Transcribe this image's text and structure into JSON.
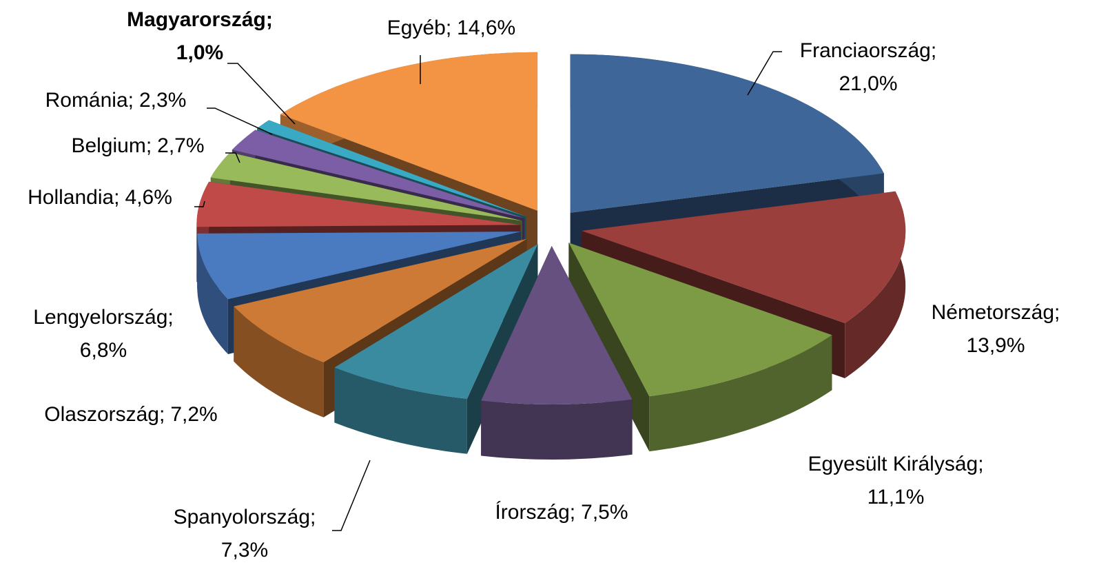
{
  "chart_data": {
    "type": "pie3d",
    "categories": [
      "Franciaország;",
      "Németország;",
      "Egyesült Királyság;",
      "Írország;",
      "Spanyolország;",
      "Olaszország;",
      "Lengyelország;",
      "Hollandia;",
      "Belgium;",
      "Románia;",
      "Magyarország;",
      "Egyéb;"
    ],
    "values": [
      21.0,
      13.9,
      11.1,
      7.5,
      7.3,
      7.2,
      6.8,
      4.6,
      2.7,
      2.3,
      1.0,
      14.6
    ],
    "value_labels": [
      "21,0%",
      "13,9%",
      "11,1%",
      "7,5%",
      "7,3%",
      "7,2%",
      "6,8%",
      "4,6%",
      "2,7%",
      "2,3%",
      "1,0%",
      "14,6%"
    ],
    "colors": [
      "#3E6699",
      "#9B3F3D",
      "#7D9A45",
      "#65507F",
      "#3A8BA0",
      "#CC7A35",
      "#4A7AC0",
      "#C04A48",
      "#98BA5A",
      "#7B5EA5",
      "#3AA9C3",
      "#F29444"
    ]
  }
}
